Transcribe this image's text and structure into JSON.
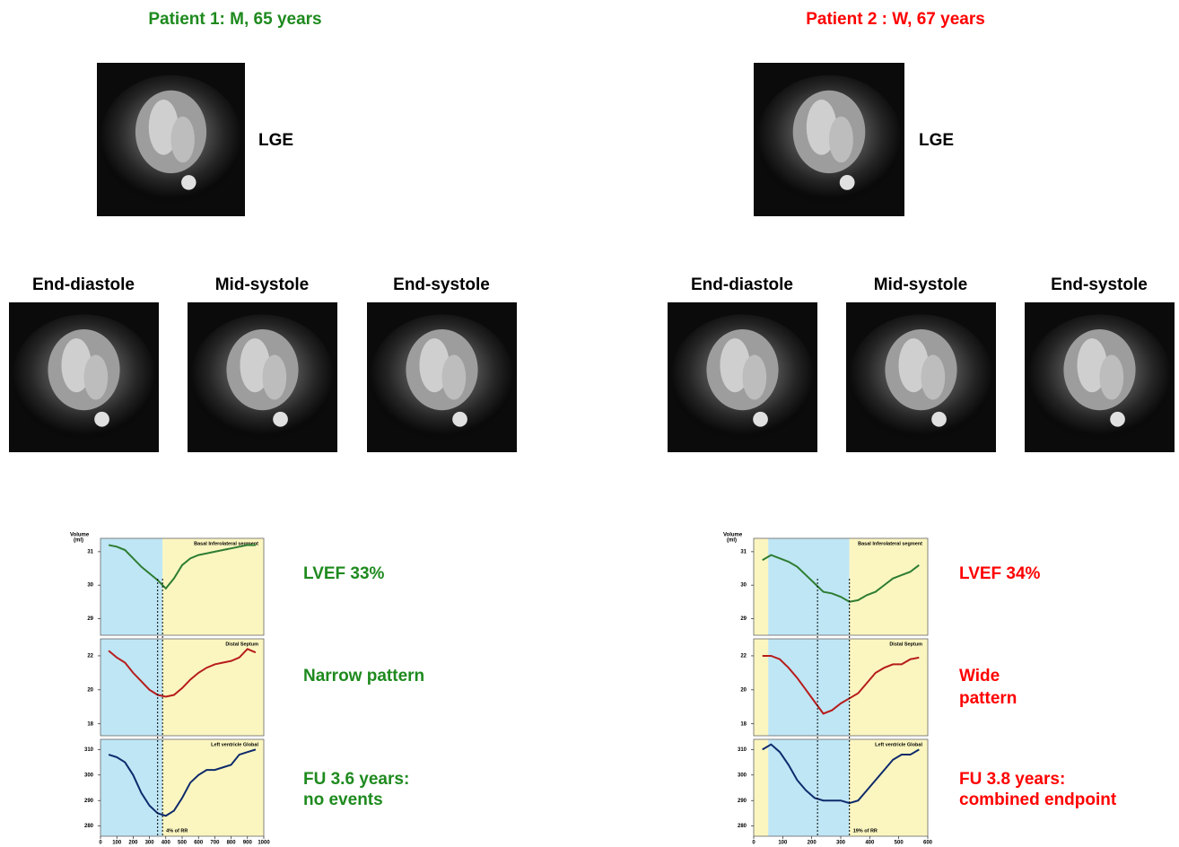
{
  "patients": [
    {
      "title": "Patient 1: M, 65 years",
      "color": "#1e8a1e",
      "lge_label": "LGE",
      "phases": [
        "End-diastole",
        "Mid-systole",
        "End-systole"
      ],
      "plot": {
        "y_label": [
          "Volume",
          "(ml)"
        ],
        "xlim": [
          0,
          1000
        ],
        "xticks": [
          0,
          100,
          200,
          300,
          400,
          500,
          600,
          700,
          800,
          900,
          1000
        ],
        "x": [
          50,
          100,
          150,
          200,
          250,
          300,
          350,
          400,
          450,
          500,
          550,
          600,
          650,
          700,
          750,
          800,
          850,
          900,
          950
        ],
        "shade": [
          {
            "range": [
              0,
              380
            ],
            "color": "#bfe6f5"
          },
          {
            "range": [
              380,
              1000
            ],
            "color": "#fbf6c0"
          }
        ],
        "markers": [
          350,
          380
        ],
        "rr_label": "4% of RR",
        "panels": [
          {
            "name": "Basal Inferolateral segment",
            "color": "#2e7d32",
            "ylim": [
              28.5,
              31.4
            ],
            "yticks": [
              29,
              30,
              31
            ],
            "values": [
              31.2,
              31.15,
              31.05,
              30.8,
              30.55,
              30.35,
              30.15,
              29.9,
              30.2,
              30.6,
              30.8,
              30.9,
              30.95,
              31.0,
              31.05,
              31.1,
              31.15,
              31.2,
              31.2
            ]
          },
          {
            "name": "Distal Septum",
            "color": "#b71c1c",
            "ylim": [
              17.3,
              23.0
            ],
            "yticks": [
              18,
              20,
              22
            ],
            "values": [
              22.3,
              21.9,
              21.6,
              21.0,
              20.5,
              20.0,
              19.7,
              19.6,
              19.7,
              20.1,
              20.6,
              21.0,
              21.3,
              21.5,
              21.6,
              21.7,
              21.9,
              22.4,
              22.2
            ]
          },
          {
            "name": "Left ventricle Global",
            "color": "#0d2a6b",
            "ylim": [
              276,
              314
            ],
            "yticks": [
              280,
              290,
              300,
              310
            ],
            "values": [
              308,
              307,
              305,
              300,
              293,
              288,
              285,
              284,
              286,
              291,
              297,
              300,
              302,
              302,
              303,
              304,
              308,
              309,
              310
            ]
          }
        ]
      },
      "lvef": "LVEF 33%",
      "pattern": [
        "Narrow pattern"
      ],
      "fu": [
        "FU 3.6 years:",
        "no events"
      ]
    },
    {
      "title": "Patient 2 : W, 67 years",
      "color": "#ff0000",
      "lge_label": "LGE",
      "phases": [
        "End-diastole",
        "Mid-systole",
        "End-systole"
      ],
      "plot": {
        "y_label": [
          "Volume",
          "(ml)"
        ],
        "xlim": [
          0,
          600
        ],
        "xticks": [
          0,
          100,
          200,
          300,
          400,
          500,
          600
        ],
        "x": [
          30,
          60,
          90,
          120,
          150,
          180,
          210,
          240,
          270,
          300,
          330,
          360,
          390,
          420,
          450,
          480,
          510,
          540,
          570
        ],
        "shade": [
          {
            "range": [
              0,
              50
            ],
            "color": "#fbf6c0"
          },
          {
            "range": [
              50,
              330
            ],
            "color": "#bfe6f5"
          },
          {
            "range": [
              330,
              600
            ],
            "color": "#fbf6c0"
          }
        ],
        "markers": [
          220,
          330
        ],
        "rr_label": "19% of RR",
        "panels": [
          {
            "name": "Basal Inferolateral segment",
            "color": "#2e7d32",
            "ylim": [
              28.5,
              31.4
            ],
            "yticks": [
              29,
              30,
              31
            ],
            "values": [
              30.75,
              30.9,
              30.8,
              30.7,
              30.55,
              30.3,
              30.05,
              29.8,
              29.75,
              29.65,
              29.5,
              29.55,
              29.7,
              29.8,
              30.0,
              30.2,
              30.3,
              30.4,
              30.6
            ]
          },
          {
            "name": "Distal Septum",
            "color": "#b71c1c",
            "ylim": [
              17.3,
              23.0
            ],
            "yticks": [
              18,
              20,
              22
            ],
            "values": [
              22.0,
              22.0,
              21.8,
              21.3,
              20.7,
              20.0,
              19.3,
              18.6,
              18.8,
              19.2,
              19.5,
              19.8,
              20.4,
              21.0,
              21.3,
              21.5,
              21.5,
              21.8,
              21.9
            ]
          },
          {
            "name": "Left ventricle Global",
            "color": "#0d2a6b",
            "ylim": [
              276,
              314
            ],
            "yticks": [
              280,
              290,
              300,
              310
            ],
            "values": [
              310,
              312,
              309,
              304,
              298,
              294,
              291,
              290,
              290,
              290,
              289,
              290,
              294,
              298,
              302,
              306,
              308,
              308,
              310
            ]
          }
        ]
      },
      "lvef": "LVEF 34%",
      "pattern": [
        "Wide",
        "pattern"
      ],
      "fu": [
        "FU 3.8 years:",
        "combined endpoint"
      ]
    }
  ]
}
